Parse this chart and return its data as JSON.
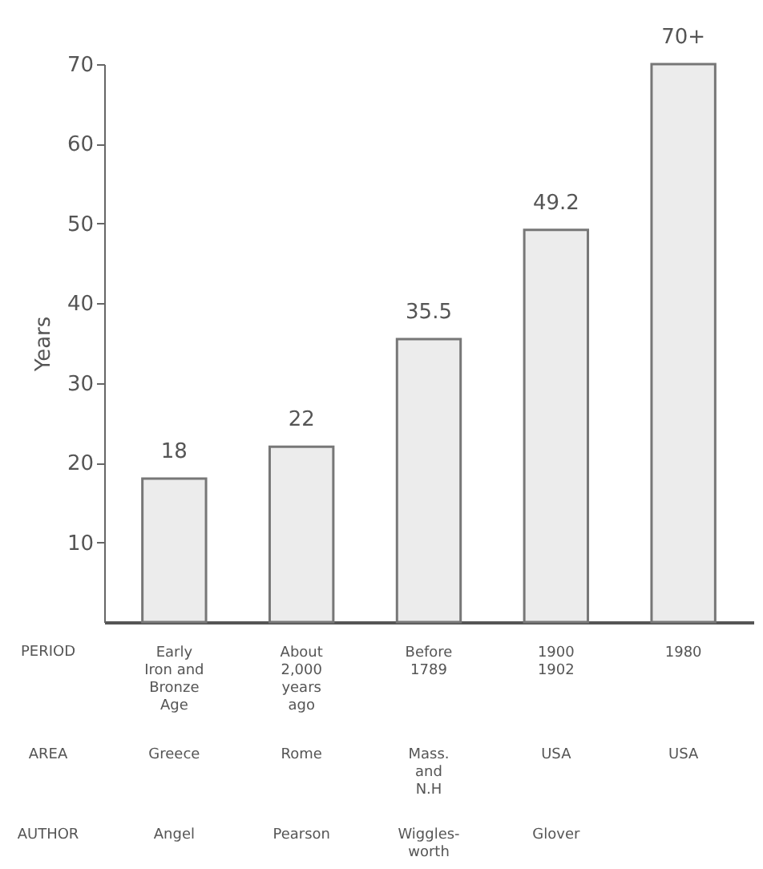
{
  "chart_data": {
    "type": "bar",
    "ylabel": "Years",
    "categories": [
      "Early\nIron and\nBronze\nAge",
      "About\n2,000\nyears\nago",
      "Before\n1789",
      "1900\n1902",
      "1980"
    ],
    "values": [
      18,
      22,
      35.5,
      49.2,
      70
    ],
    "value_labels": [
      "18",
      "22",
      "35.5",
      "49.2",
      "70+"
    ],
    "color": "#ececec",
    "ylim": [
      0,
      70
    ],
    "yticks": [
      10,
      20,
      30,
      40,
      50,
      60,
      70
    ],
    "grid": false,
    "annotations": [
      "PERIOD",
      "AREA",
      "AUTHOR",
      "Greece",
      "Rome",
      "Mass.\nand\nN.H",
      "USA",
      "USA",
      "Angel",
      "Pearson",
      "Wiggles-\nworth",
      "Glover"
    ]
  }
}
